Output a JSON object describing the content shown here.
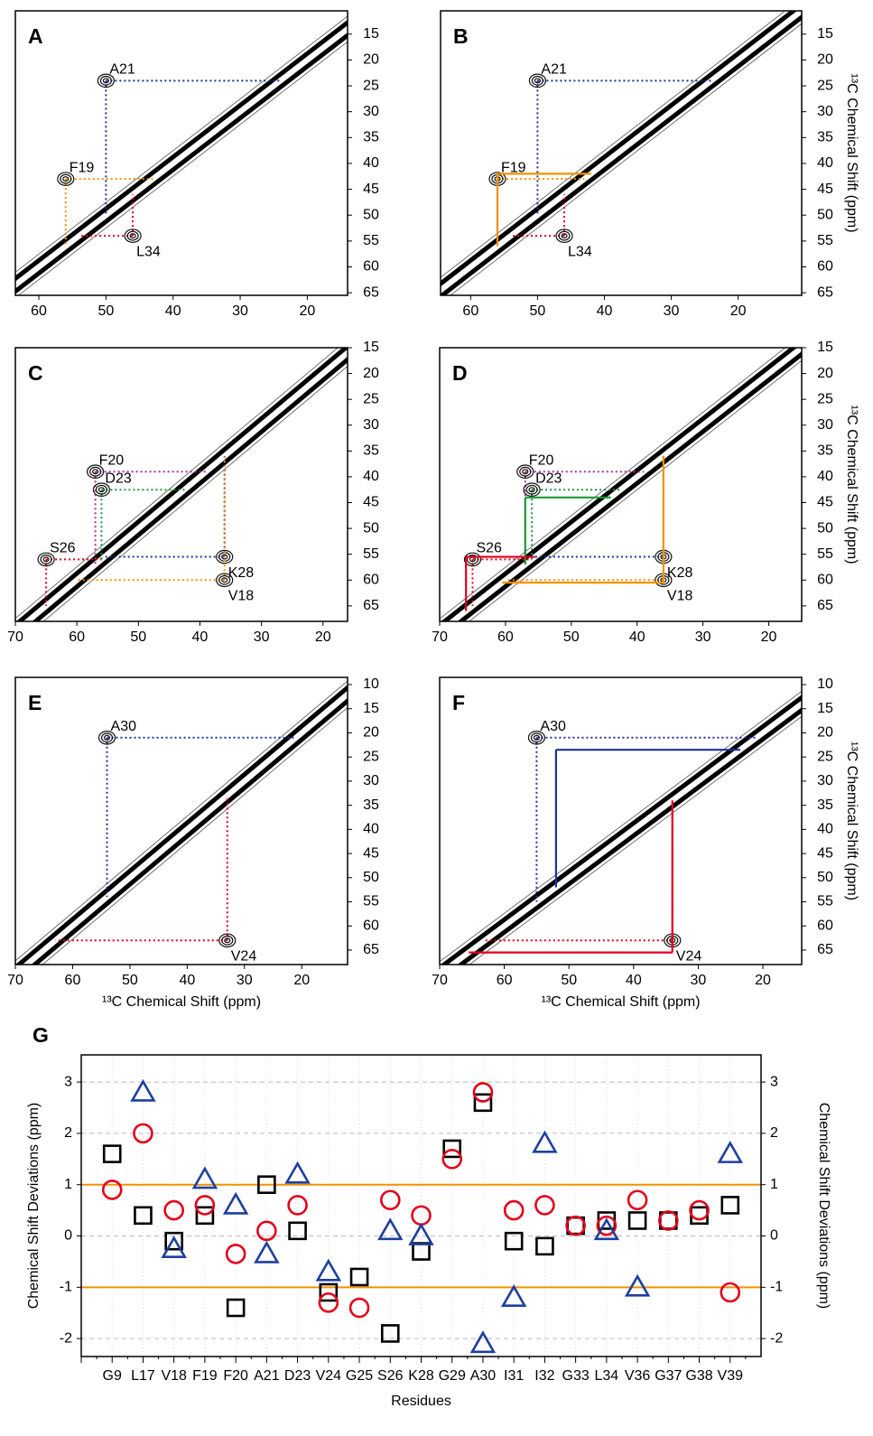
{
  "chart_data": [
    {
      "type": "contour",
      "panel": "A",
      "xlim": [
        63.5,
        14
      ],
      "ylim": [
        10.5,
        65.5
      ],
      "xticks": [
        60,
        50,
        40,
        30,
        20
      ],
      "yticks": [
        15,
        20,
        25,
        30,
        35,
        40,
        45,
        50,
        55,
        60,
        65
      ],
      "assignments": [
        {
          "label": "A21",
          "color": "#1f2f9e",
          "peaks": [
            {
              "x": 50,
              "y": 24,
              "style": "dotted"
            }
          ]
        },
        {
          "label": "F19",
          "color": "#f39200",
          "peaks": [
            {
              "x": 56,
              "y": 43,
              "style": "dotted"
            }
          ]
        },
        {
          "label": "L34",
          "color": "#e3001b",
          "peaks": [
            {
              "x": 46,
              "y": 54,
              "style": "dotted"
            }
          ]
        }
      ]
    },
    {
      "type": "contour",
      "panel": "B",
      "xlim": [
        64.5,
        10.5
      ],
      "ylim": [
        10.5,
        65.5
      ],
      "xticks": [
        60,
        50,
        40,
        30,
        20
      ],
      "yticks": [
        15,
        20,
        25,
        30,
        35,
        40,
        45,
        50,
        55,
        60,
        65
      ],
      "ylabel": "¹³C Chemical Shift (ppm)",
      "assignments": [
        {
          "label": "A21",
          "color": "#1f2f9e",
          "peaks": [
            {
              "x": 50,
              "y": 24,
              "style": "dotted"
            }
          ]
        },
        {
          "label": "F19",
          "color": "#f39200",
          "peaks": [
            {
              "x": 56,
              "y": 43,
              "style": "dotted"
            },
            {
              "x": 56,
              "y": 42,
              "style": "solid"
            }
          ]
        },
        {
          "label": "L34",
          "color": "#e3001b",
          "peaks": [
            {
              "x": 46,
              "y": 54,
              "style": "dotted"
            }
          ]
        }
      ]
    },
    {
      "type": "contour",
      "panel": "C",
      "xlim": [
        70,
        16
      ],
      "ylim": [
        15,
        68
      ],
      "xticks": [
        70,
        60,
        50,
        40,
        30,
        20
      ],
      "yticks": [
        15,
        20,
        25,
        30,
        35,
        40,
        45,
        50,
        55,
        60,
        65
      ],
      "assignments": [
        {
          "label": "F20",
          "color": "#b0308f",
          "peaks": [
            {
              "x": 57,
              "y": 39,
              "style": "dotted"
            }
          ]
        },
        {
          "label": "D23",
          "color": "#1a9a3a",
          "peaks": [
            {
              "x": 56,
              "y": 42.5,
              "style": "dotted"
            }
          ]
        },
        {
          "label": "S26",
          "color": "#e3001b",
          "peaks": [
            {
              "x": 65,
              "y": 56,
              "style": "dotted"
            }
          ]
        },
        {
          "label": "K28",
          "color": "#1f2f9e",
          "peaks": [
            {
              "x": 36,
              "y": 55.5,
              "style": "dotted"
            }
          ]
        },
        {
          "label": "V18",
          "color": "#f39200",
          "peaks": [
            {
              "x": 36,
              "y": 60,
              "style": "dotted"
            }
          ]
        }
      ]
    },
    {
      "type": "contour",
      "panel": "D",
      "xlim": [
        70,
        15
      ],
      "ylim": [
        15,
        68
      ],
      "xticks": [
        70,
        60,
        50,
        40,
        30,
        20
      ],
      "yticks": [
        15,
        20,
        25,
        30,
        35,
        40,
        45,
        50,
        55,
        60,
        65
      ],
      "ylabel": "¹³C Chemical Shift (ppm)",
      "assignments": [
        {
          "label": "F20",
          "color": "#b0308f",
          "peaks": [
            {
              "x": 57,
              "y": 39,
              "style": "dotted"
            }
          ]
        },
        {
          "label": "D23",
          "color": "#1a9a3a",
          "peaks": [
            {
              "x": 56,
              "y": 42.5,
              "style": "dotted"
            },
            {
              "x": 57,
              "y": 44,
              "style": "solid"
            }
          ]
        },
        {
          "label": "S26",
          "color": "#e3001b",
          "peaks": [
            {
              "x": 65,
              "y": 56,
              "style": "dotted"
            },
            {
              "x": 66,
              "y": 55.5,
              "style": "solid"
            }
          ]
        },
        {
          "label": "K28",
          "color": "#1f2f9e",
          "peaks": [
            {
              "x": 36,
              "y": 55.5,
              "style": "dotted"
            }
          ]
        },
        {
          "label": "V18",
          "color": "#f39200",
          "peaks": [
            {
              "x": 36,
              "y": 60,
              "style": "dotted"
            },
            {
              "x": 36,
              "y": 60.5,
              "style": "solid"
            }
          ]
        }
      ]
    },
    {
      "type": "contour",
      "panel": "E",
      "xlim": [
        70,
        12
      ],
      "ylim": [
        8.5,
        68
      ],
      "xticks": [
        70,
        60,
        50,
        40,
        30,
        20
      ],
      "yticks": [
        10,
        15,
        20,
        25,
        30,
        35,
        40,
        45,
        50,
        55,
        60,
        65
      ],
      "xlabel": "¹³C Chemical Shift (ppm)",
      "assignments": [
        {
          "label": "A30",
          "color": "#1f2f9e",
          "peaks": [
            {
              "x": 54,
              "y": 21,
              "style": "dotted"
            }
          ]
        },
        {
          "label": "V24",
          "color": "#e3001b",
          "peaks": [
            {
              "x": 33,
              "y": 63,
              "style": "dotted"
            }
          ]
        }
      ]
    },
    {
      "type": "contour",
      "panel": "F",
      "xlim": [
        70,
        14
      ],
      "ylim": [
        8.5,
        68
      ],
      "xticks": [
        70,
        60,
        50,
        40,
        30,
        20
      ],
      "yticks": [
        10,
        15,
        20,
        25,
        30,
        35,
        40,
        45,
        50,
        55,
        60,
        65
      ],
      "xlabel": "¹³C Chemical Shift (ppm)",
      "ylabel": "¹³C Chemical Shift (ppm)",
      "assignments": [
        {
          "label": "A30",
          "color": "#1f2f9e",
          "peaks": [
            {
              "x": 55,
              "y": 21,
              "style": "dotted"
            },
            {
              "x": 52,
              "y": 23.5,
              "style": "solid"
            }
          ]
        },
        {
          "label": "V24",
          "color": "#e3001b",
          "peaks": [
            {
              "x": 34,
              "y": 63,
              "style": "dotted"
            },
            {
              "x": 34,
              "y": 65.5,
              "style": "solid"
            }
          ]
        }
      ]
    },
    {
      "type": "scatter",
      "panel": "G",
      "categories": [
        "G9",
        "L17",
        "V18",
        "F19",
        "F20",
        "A21",
        "D23",
        "V24",
        "G25",
        "S26",
        "K28",
        "G29",
        "A30",
        "I31",
        "I32",
        "G33",
        "L34",
        "V36",
        "G37",
        "G38",
        "V39"
      ],
      "category_colors": [
        "#1a9a3a",
        "#1a9a3a",
        "#000000",
        "#1a9a3a",
        "#1a9a3a",
        "#000000",
        "#1a9a3a",
        "#1a9a3a",
        "#1a9a3a",
        "#1a9a3a",
        "#000000",
        "#1a9a3a",
        "#1a9a3a",
        "#1a9a3a",
        "#1a9a3a",
        "#000000",
        "#000000",
        "#000000",
        "#000000",
        "#000000",
        "#1a9a3a"
      ],
      "xlabel": "Residues",
      "ylabel": "Chemical Shift Deviations (ppm)",
      "y2label": "Chemical Shift Deviations (ppm)",
      "ylim": [
        -2.35,
        3.53
      ],
      "yticks": [
        -2,
        -1,
        0,
        1,
        2,
        3
      ],
      "y2lim": [
        -2.35,
        3.53
      ],
      "y2ticks": [
        -2,
        -1,
        0,
        1,
        2,
        3
      ],
      "grid": true,
      "reference_lines": [
        1,
        -1
      ],
      "reference_color": "#f39200",
      "series": [
        {
          "marker": "square",
          "color": "#000000",
          "values": [
            1.6,
            0.4,
            -0.1,
            0.4,
            -1.4,
            1.0,
            0.1,
            -1.1,
            -0.8,
            -1.9,
            -0.3,
            1.7,
            2.6,
            -0.1,
            -0.2,
            0.2,
            0.3,
            0.3,
            0.3,
            0.4,
            0.6
          ]
        },
        {
          "marker": "circle",
          "color": "#e3001b",
          "values": [
            0.9,
            2.0,
            0.5,
            0.6,
            -0.35,
            0.1,
            0.6,
            -1.3,
            -1.4,
            0.7,
            0.4,
            1.5,
            2.8,
            0.5,
            0.6,
            0.2,
            0.2,
            0.7,
            0.3,
            0.5,
            -1.1
          ]
        },
        {
          "marker": "triangle",
          "color": "#1f3f9e",
          "values": [
            null,
            2.8,
            -0.25,
            1.1,
            0.6,
            -0.35,
            1.2,
            -0.7,
            null,
            0.1,
            0.0,
            null,
            -2.1,
            -1.2,
            1.8,
            null,
            0.1,
            -1.0,
            null,
            null,
            1.6
          ]
        }
      ]
    }
  ]
}
